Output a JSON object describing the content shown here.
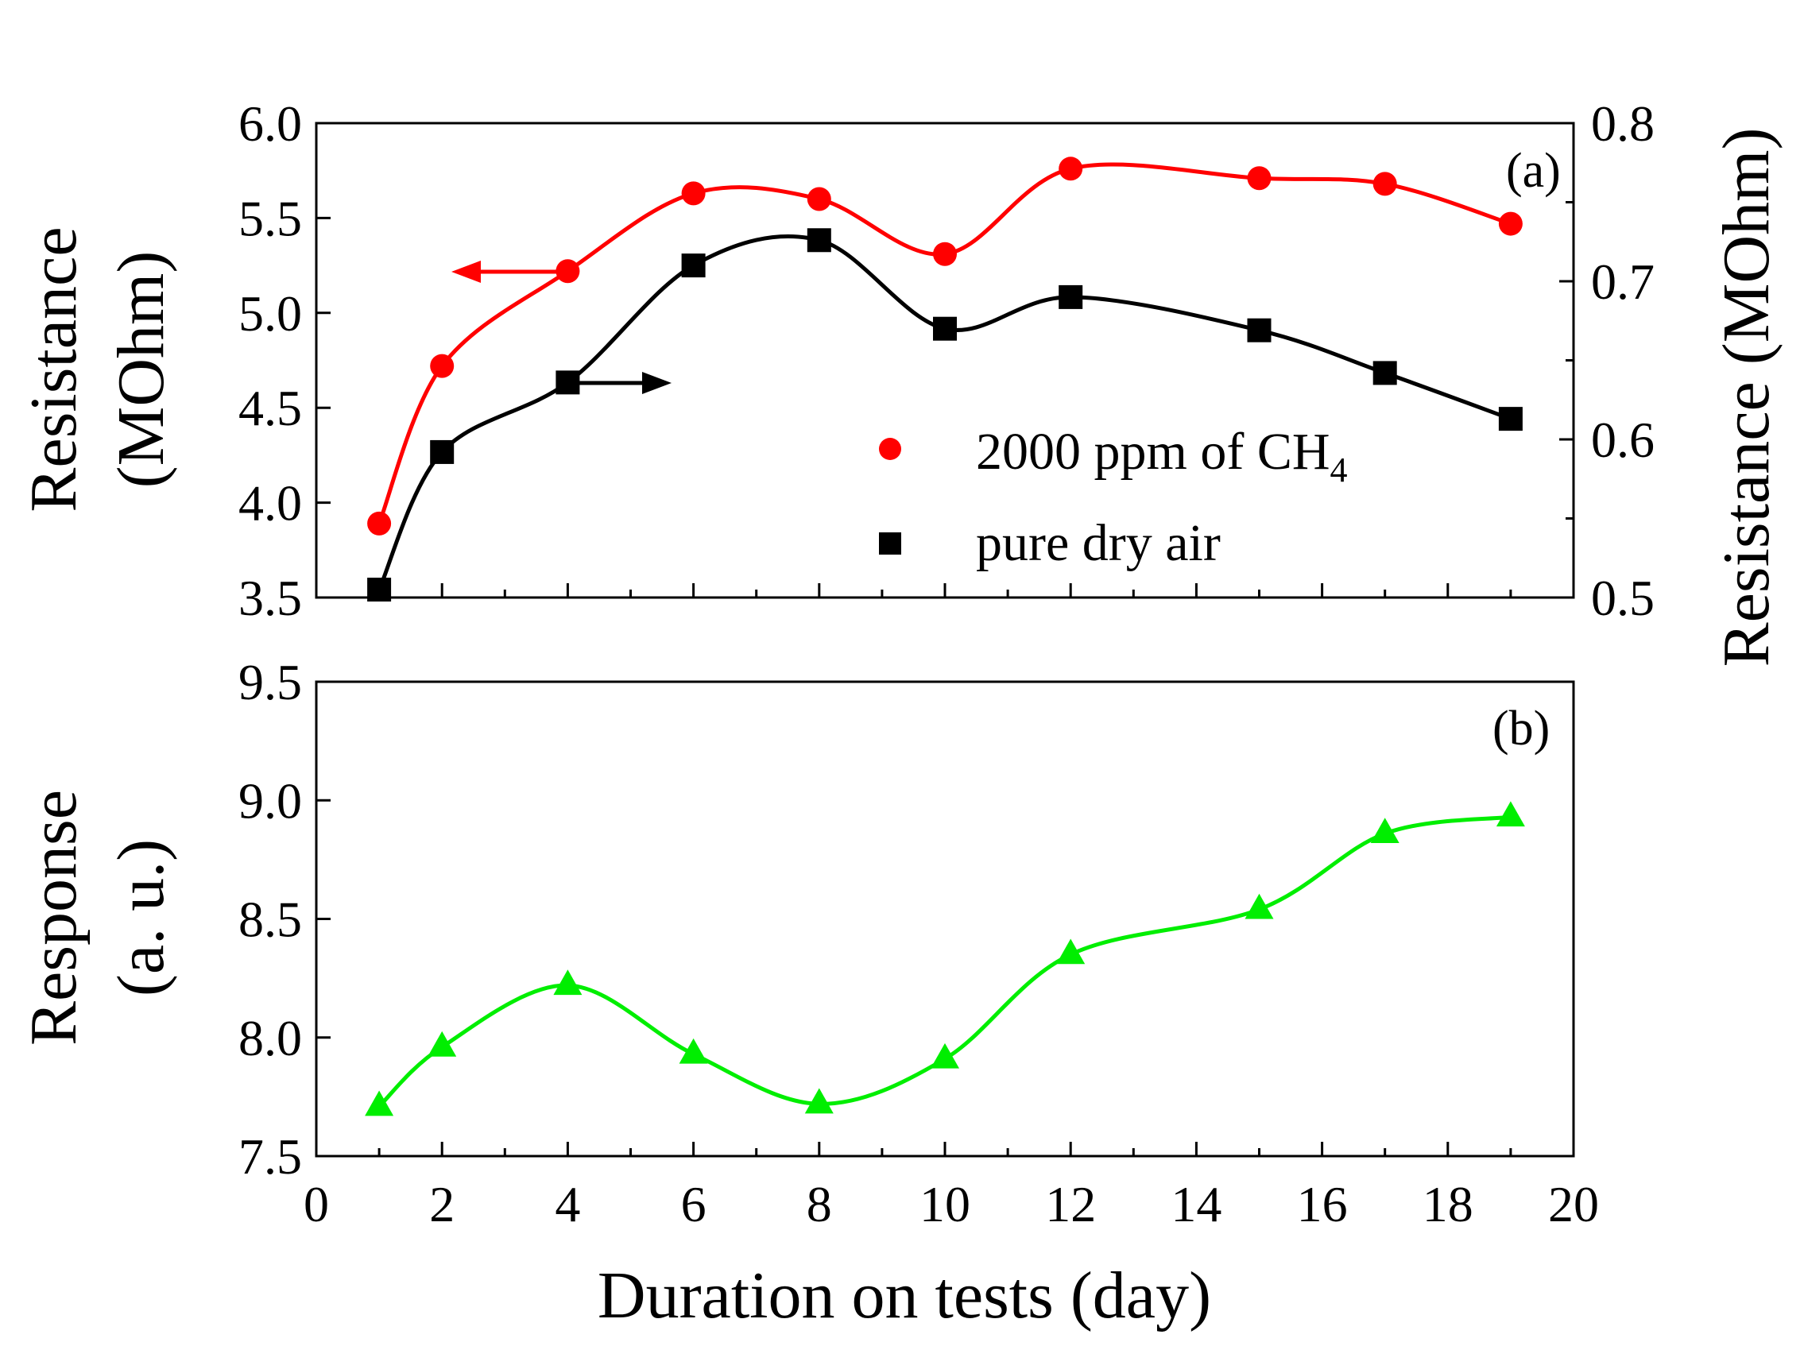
{
  "chart_data": [
    {
      "panel": "(a)",
      "type": "line",
      "x_ticks": [
        "0",
        "2",
        "4",
        "6",
        "8",
        "10",
        "12",
        "14",
        "16",
        "18",
        "20"
      ],
      "xlim": [
        0,
        20
      ],
      "ylabel_left": [
        "Resistance",
        "(MOhm)"
      ],
      "ylim_left": [
        3.5,
        6.0
      ],
      "y_ticks_left": [
        "3.5",
        "4.0",
        "4.5",
        "5.0",
        "5.5",
        "6.0"
      ],
      "ylabel_right": "Resistance (MOhm)",
      "ylim_right": [
        0.5,
        0.8
      ],
      "y_ticks_right": [
        "0.5",
        "0.6",
        "0.7",
        "0.8"
      ],
      "legend": {
        "position": "center-right",
        "items": [
          {
            "label": "2000 ppm of CH",
            "subscript": "4",
            "marker": "circle",
            "color": "#ff0000"
          },
          {
            "label": "pure dry air",
            "marker": "square",
            "color": "#000000"
          }
        ]
      },
      "series": [
        {
          "name": "2000 ppm of CH4",
          "axis": "left",
          "color": "#ff0000",
          "marker": "circle",
          "x": [
            1,
            2,
            4,
            6,
            8,
            10,
            12,
            15,
            17,
            19
          ],
          "y": [
            3.89,
            4.72,
            5.22,
            5.63,
            5.6,
            5.31,
            5.76,
            5.71,
            5.68,
            5.47
          ]
        },
        {
          "name": "pure dry air",
          "axis": "right",
          "color": "#000000",
          "marker": "square",
          "x": [
            1,
            2,
            4,
            6,
            8,
            10,
            12,
            15,
            17,
            19
          ],
          "y": [
            0.505,
            0.592,
            0.636,
            0.71,
            0.726,
            0.67,
            0.69,
            0.669,
            0.642,
            0.613
          ]
        }
      ],
      "arrows": [
        {
          "direction": "left",
          "points_to": "left axis",
          "color": "#ff0000"
        },
        {
          "direction": "right",
          "points_to": "right axis",
          "color": "#000000"
        }
      ]
    },
    {
      "panel": "(b)",
      "type": "line",
      "xlabel": "Duration on tests (day)",
      "x_ticks": [
        "0",
        "2",
        "4",
        "6",
        "8",
        "10",
        "12",
        "14",
        "16",
        "18",
        "20"
      ],
      "xlim": [
        0,
        20
      ],
      "ylabel": [
        "Response",
        "(a. u.)"
      ],
      "ylim": [
        7.5,
        9.5
      ],
      "y_ticks": [
        "7.5",
        "8.0",
        "8.5",
        "9.0",
        "9.5"
      ],
      "series": [
        {
          "name": "Response",
          "color": "#00ee00",
          "marker": "triangle",
          "x": [
            1,
            2,
            4,
            6,
            8,
            10,
            12,
            15,
            17,
            19
          ],
          "y": [
            7.71,
            7.96,
            8.22,
            7.93,
            7.72,
            7.91,
            8.35,
            8.54,
            8.86,
            8.93
          ]
        }
      ]
    }
  ]
}
